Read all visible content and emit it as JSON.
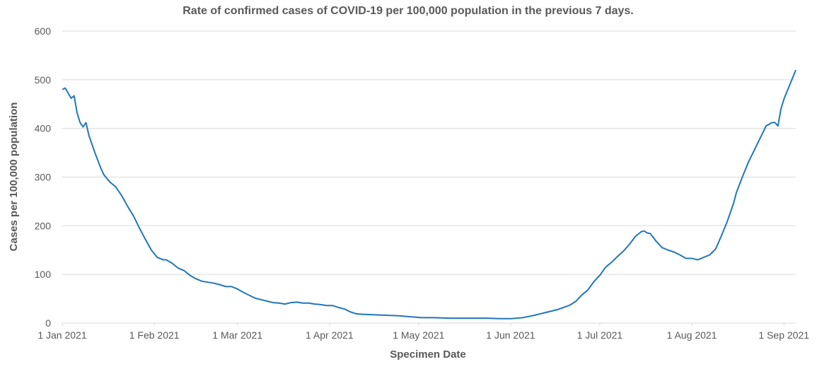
{
  "chart_data": {
    "type": "line",
    "title": "Rate of confirmed cases of COVID-19  per 100,000 population in the previous 7 days.",
    "x_label": "Specimen Date",
    "y_label": "Cases per 100,000 population",
    "color": "#2176bc",
    "grid": true,
    "x": [
      "2021-01-01",
      "2021-01-02",
      "2021-01-04",
      "2021-01-05",
      "2021-01-06",
      "2021-01-07",
      "2021-01-08",
      "2021-01-09",
      "2021-01-10",
      "2021-01-12",
      "2021-01-14",
      "2021-01-15",
      "2021-01-17",
      "2021-01-19",
      "2021-01-21",
      "2021-01-23",
      "2021-01-25",
      "2021-01-27",
      "2021-01-29",
      "2021-01-31",
      "2021-02-02",
      "2021-02-04",
      "2021-02-05",
      "2021-02-07",
      "2021-02-09",
      "2021-02-11",
      "2021-02-13",
      "2021-02-15",
      "2021-02-17",
      "2021-02-19",
      "2021-02-21",
      "2021-02-23",
      "2021-02-25",
      "2021-02-27",
      "2021-03-01",
      "2021-03-03",
      "2021-03-05",
      "2021-03-07",
      "2021-03-09",
      "2021-03-11",
      "2021-03-13",
      "2021-03-15",
      "2021-03-17",
      "2021-03-19",
      "2021-03-21",
      "2021-03-23",
      "2021-03-25",
      "2021-03-27",
      "2021-03-29",
      "2021-03-31",
      "2021-04-02",
      "2021-04-04",
      "2021-04-06",
      "2021-04-08",
      "2021-04-10",
      "2021-04-12",
      "2021-04-16",
      "2021-04-20",
      "2021-04-24",
      "2021-04-28",
      "2021-05-02",
      "2021-05-06",
      "2021-05-12",
      "2021-05-18",
      "2021-05-24",
      "2021-05-28",
      "2021-06-01",
      "2021-06-05",
      "2021-06-09",
      "2021-06-13",
      "2021-06-17",
      "2021-06-21",
      "2021-06-23",
      "2021-06-25",
      "2021-06-27",
      "2021-06-29",
      "2021-07-01",
      "2021-07-03",
      "2021-07-05",
      "2021-07-07",
      "2021-07-09",
      "2021-07-11",
      "2021-07-13",
      "2021-07-15",
      "2021-07-16",
      "2021-07-17",
      "2021-07-18",
      "2021-07-20",
      "2021-07-22",
      "2021-07-24",
      "2021-07-26",
      "2021-07-28",
      "2021-07-30",
      "2021-08-01",
      "2021-08-03",
      "2021-08-05",
      "2021-08-07",
      "2021-08-09",
      "2021-08-11",
      "2021-08-13",
      "2021-08-15",
      "2021-08-16",
      "2021-08-18",
      "2021-08-20",
      "2021-08-22",
      "2021-08-24",
      "2021-08-26",
      "2021-08-28",
      "2021-08-29",
      "2021-08-30",
      "2021-08-31",
      "2021-09-01",
      "2021-09-02",
      "2021-09-03",
      "2021-09-04",
      "2021-09-05"
    ],
    "values": [
      480,
      483,
      462,
      467,
      432,
      412,
      403,
      412,
      385,
      350,
      318,
      305,
      290,
      280,
      262,
      240,
      220,
      195,
      172,
      150,
      135,
      130,
      130,
      123,
      113,
      108,
      98,
      91,
      86,
      84,
      82,
      79,
      75,
      75,
      70,
      63,
      57,
      51,
      48,
      45,
      42,
      41,
      39,
      42,
      43,
      41,
      41,
      39,
      38,
      36,
      36,
      32,
      29,
      23,
      19,
      18,
      17,
      16,
      15,
      13,
      11,
      11,
      10,
      10,
      10,
      9,
      9,
      11,
      16,
      22,
      28,
      37,
      45,
      58,
      68,
      85,
      98,
      115,
      125,
      137,
      148,
      162,
      178,
      188,
      189,
      185,
      184,
      168,
      155,
      150,
      146,
      140,
      133,
      133,
      130,
      135,
      140,
      152,
      180,
      210,
      245,
      268,
      300,
      330,
      355,
      380,
      405,
      412,
      412,
      405,
      440,
      460,
      475,
      490,
      505,
      520
    ],
    "xlim": [
      "2021-01-01",
      "2021-09-05"
    ],
    "xticks": [
      {
        "value": "2021-01-01",
        "label": "1 Jan 2021"
      },
      {
        "value": "2021-02-01",
        "label": "1 Feb 2021"
      },
      {
        "value": "2021-03-01",
        "label": "1 Mar 2021"
      },
      {
        "value": "2021-04-01",
        "label": "1 Apr 2021"
      },
      {
        "value": "2021-05-01",
        "label": "1 May 2021"
      },
      {
        "value": "2021-06-01",
        "label": "1 Jun 2021"
      },
      {
        "value": "2021-07-01",
        "label": "1 Jul 2021"
      },
      {
        "value": "2021-08-01",
        "label": "1 Aug 2021"
      },
      {
        "value": "2021-09-01",
        "label": "1 Sep 2021"
      }
    ],
    "ylim": [
      0,
      600
    ],
    "yticks": [
      0,
      100,
      200,
      300,
      400,
      500,
      600
    ]
  }
}
